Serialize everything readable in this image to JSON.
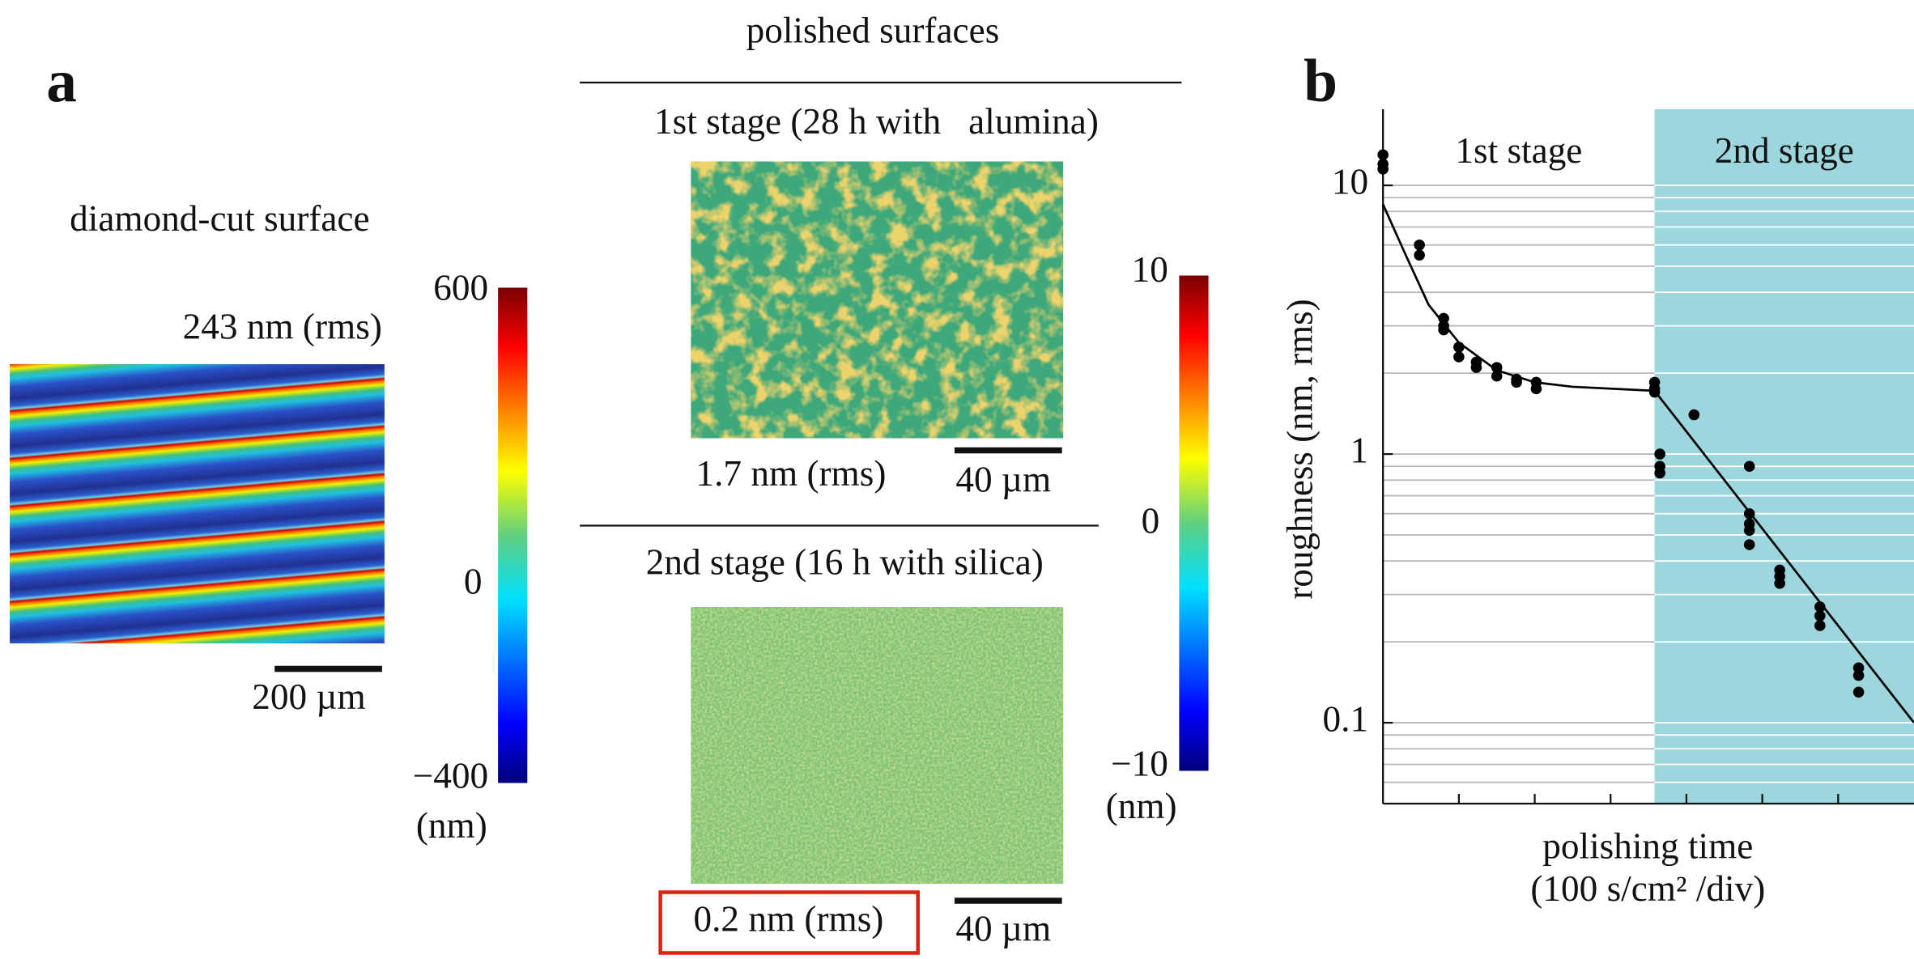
{
  "panel_a": {
    "label": "a",
    "polished_title": "polished surfaces",
    "stage1": {
      "title": "1st stage (28 h with   alumina)",
      "rms": "1.7 nm (rms)",
      "scale": "40 µm"
    },
    "stage2": {
      "title": "2nd stage (16 h with silica)",
      "rms": "0.2 nm (rms)",
      "scale": "40 µm"
    },
    "diamond": {
      "title": "diamond-cut surface",
      "rms": "243 nm (rms)",
      "scale": "200 µm"
    },
    "colorbar_diamond": {
      "ticks": [
        "600",
        "0",
        "−400"
      ],
      "unit": "(nm)"
    },
    "colorbar_polished": {
      "ticks": [
        "10",
        "0",
        "−10"
      ],
      "unit": "(nm)"
    }
  },
  "chart_data": {
    "type": "scatter",
    "panel_label": "b",
    "ylabel": "roughness (nm, rms)",
    "xlabel": "polishing time",
    "xlabel_units": "(100 s/cm² /div)",
    "log_y": true,
    "xlim": [
      0,
      7
    ],
    "ylim": [
      0.05,
      19.2
    ],
    "yticks": [
      0.1,
      1,
      10
    ],
    "xtick_marks": [
      1,
      2,
      3,
      4,
      5,
      6
    ],
    "grid_values": [
      0.06,
      0.07,
      0.08,
      0.09,
      0.1,
      0.2,
      0.3,
      0.4,
      0.5,
      0.6,
      0.7,
      0.8,
      0.9,
      1,
      2,
      3,
      4,
      5,
      6,
      7,
      8,
      9,
      10
    ],
    "grid_color": "#b8b8b8",
    "regions": [
      {
        "label": "1st stage",
        "from": 0,
        "to": 3.58
      },
      {
        "label": "2nd stage",
        "from": 3.58,
        "to": 7,
        "color": "#9ed6de"
      }
    ],
    "series": [
      {
        "kind": "points",
        "color": "#000000",
        "x": [
          0,
          0,
          0,
          0.48,
          0.48,
          0.8,
          0.8,
          0.8,
          1.0,
          1.0,
          1.23,
          1.23,
          1.5,
          1.5,
          1.76,
          1.76,
          2.02,
          2.02,
          3.58,
          3.58,
          3.58,
          3.65,
          3.65,
          3.65,
          4.1,
          4.83,
          4.83,
          4.83,
          4.83,
          4.83,
          5.23,
          5.23,
          5.23,
          5.76,
          5.76,
          5.76,
          6.27,
          6.27,
          6.27
        ],
        "values": [
          13,
          12,
          11.5,
          6,
          5.5,
          3.2,
          3.0,
          2.9,
          2.5,
          2.3,
          2.2,
          2.1,
          2.1,
          1.95,
          1.9,
          1.85,
          1.85,
          1.75,
          1.85,
          1.75,
          1.7,
          1.0,
          0.9,
          0.85,
          1.4,
          0.9,
          0.6,
          0.52,
          0.46,
          0.55,
          0.37,
          0.35,
          0.33,
          0.27,
          0.25,
          0.23,
          0.16,
          0.15,
          0.13
        ]
      },
      {
        "kind": "line",
        "color": "#000000",
        "x": [
          0,
          0.3,
          0.6,
          1.0,
          1.5,
          2.0,
          2.5,
          3.58,
          7
        ],
        "values": [
          8.5,
          5.5,
          3.6,
          2.6,
          2.05,
          1.85,
          1.78,
          1.72,
          0.1
        ]
      }
    ]
  }
}
